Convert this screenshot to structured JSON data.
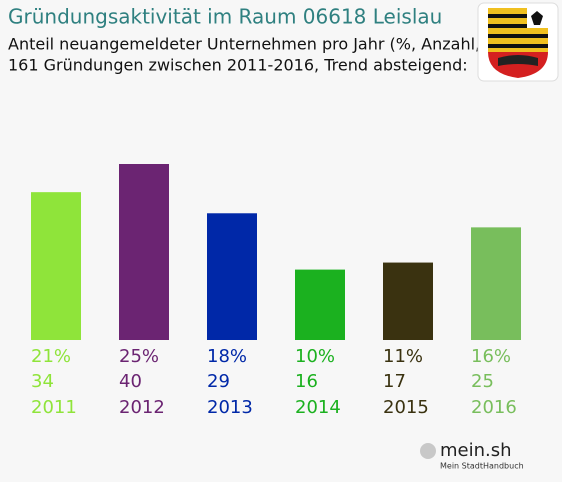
{
  "chart_data": {
    "type": "bar",
    "title": "Gründungsaktivität im Raum 06618 Leislau",
    "subtitle": "Anteil neuangemeldeter Unternehmen pro Jahr (%, Anzahl, Jahr)",
    "subtitle2": "161 Gründungen zwischen 2011-2016, Trend absteigend:",
    "categories": [
      "2011",
      "2012",
      "2013",
      "2014",
      "2015",
      "2016"
    ],
    "values": [
      21,
      25,
      18,
      10,
      11,
      16
    ],
    "value_labels": [
      "21%",
      "25%",
      "18%",
      "10%",
      "11%",
      "16%"
    ],
    "counts": [
      34,
      40,
      29,
      16,
      17,
      25
    ],
    "colors": [
      "#8fe43a",
      "#6b2472",
      "#0028a8",
      "#1bb11f",
      "#3a3210",
      "#78be5c"
    ]
  },
  "logo": {
    "name": "mein.sh",
    "tagline": "Mein StadtHandbuch"
  }
}
